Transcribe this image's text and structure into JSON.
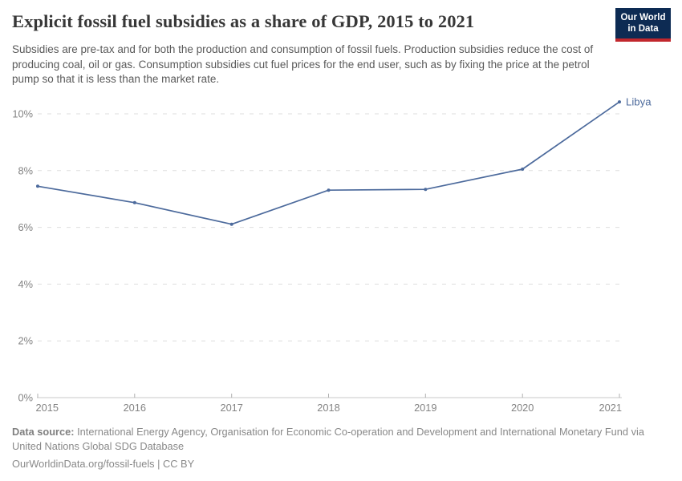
{
  "header": {
    "title": "Explicit fossil fuel subsidies as a share of GDP, 2015 to 2021",
    "subtitle": "Subsidies are pre-tax and for both the production and consumption of fossil fuels. Production subsidies reduce the cost of producing coal, oil or gas. Consumption subsidies cut fuel prices for the end user, such as by fixing the price at the petrol pump so that it is less than the market rate.",
    "logo": {
      "line1": "Our World",
      "line2": "in Data",
      "bg_color": "#0d2b53",
      "accent_color": "#c1272d"
    }
  },
  "chart_data": {
    "type": "line",
    "title": "Explicit fossil fuel subsidies as a share of GDP, 2015 to 2021",
    "x": [
      2015,
      2016,
      2017,
      2018,
      2019,
      2020,
      2021
    ],
    "series": [
      {
        "name": "Libya",
        "values": [
          7.45,
          6.87,
          6.11,
          7.31,
          7.34,
          8.05,
          10.42
        ],
        "color": "#4c6a9c"
      }
    ],
    "xlabel": "",
    "ylabel": "",
    "ylim": [
      0,
      10.5
    ],
    "yticks": [
      0,
      2,
      4,
      6,
      8,
      10
    ],
    "ytick_format": "{}%",
    "grid": "horizontal-dashed",
    "legend": "end-of-line-label",
    "marker": "point"
  },
  "chart_style": {
    "grid_color": "#dedede",
    "axis_color": "#c8c8c8",
    "tick_color": "#b0b0b0",
    "tick_label_color": "#838383"
  },
  "footer": {
    "data_source_label": "Data source:",
    "data_source_text": "International Energy Agency, Organisation for Economic Co-operation and Development and International Monetary Fund via United Nations Global SDG Database",
    "attribution": "OurWorldinData.org/fossil-fuels | CC BY"
  }
}
